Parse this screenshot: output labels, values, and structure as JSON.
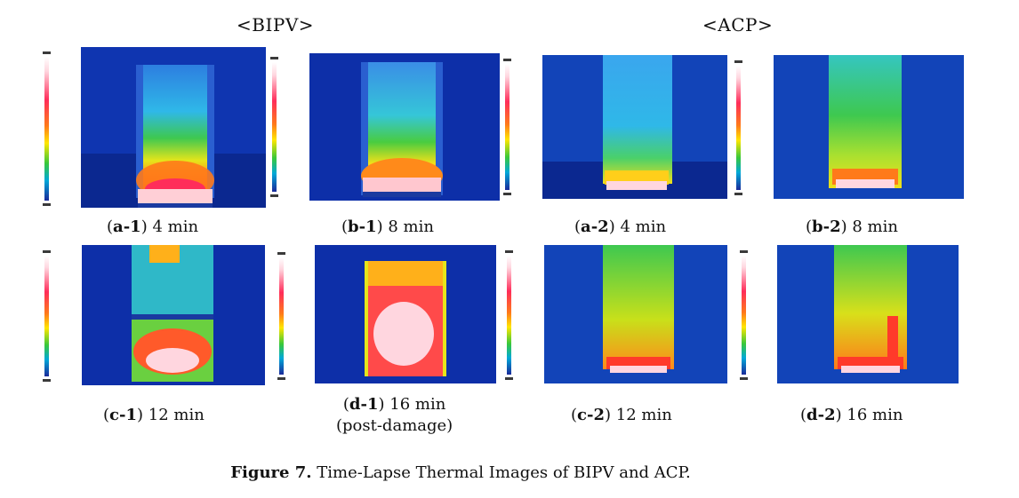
{
  "group_titles": {
    "bipv": "<BIPV>",
    "acp": "<ACP>"
  },
  "panels": [
    {
      "id": "a-1",
      "label": "a-1",
      "time": "4 min",
      "note": ""
    },
    {
      "id": "b-1",
      "label": "b-1",
      "time": "8 min",
      "note": ""
    },
    {
      "id": "a-2",
      "label": "a-2",
      "time": "4 min",
      "note": ""
    },
    {
      "id": "b-2",
      "label": "b-2",
      "time": "8 min",
      "note": ""
    },
    {
      "id": "c-1",
      "label": "c-1",
      "time": "12 min",
      "note": ""
    },
    {
      "id": "d-1",
      "label": "d-1",
      "time": "16 min",
      "note": "(post-damage)"
    },
    {
      "id": "c-2",
      "label": "c-2",
      "time": "12 min",
      "note": ""
    },
    {
      "id": "d-2",
      "label": "d-2",
      "time": "16 min",
      "note": ""
    }
  ],
  "figure_caption": {
    "label": "Figure 7.",
    "text": " Time-Lapse Thermal Images of BIPV and ACP."
  },
  "colors": {
    "cold": "#0d2fa8",
    "cool": "#1a8fe0",
    "warm": "#ffe600",
    "hot": "#ff2d2d",
    "white_hot": "#ffffff"
  }
}
